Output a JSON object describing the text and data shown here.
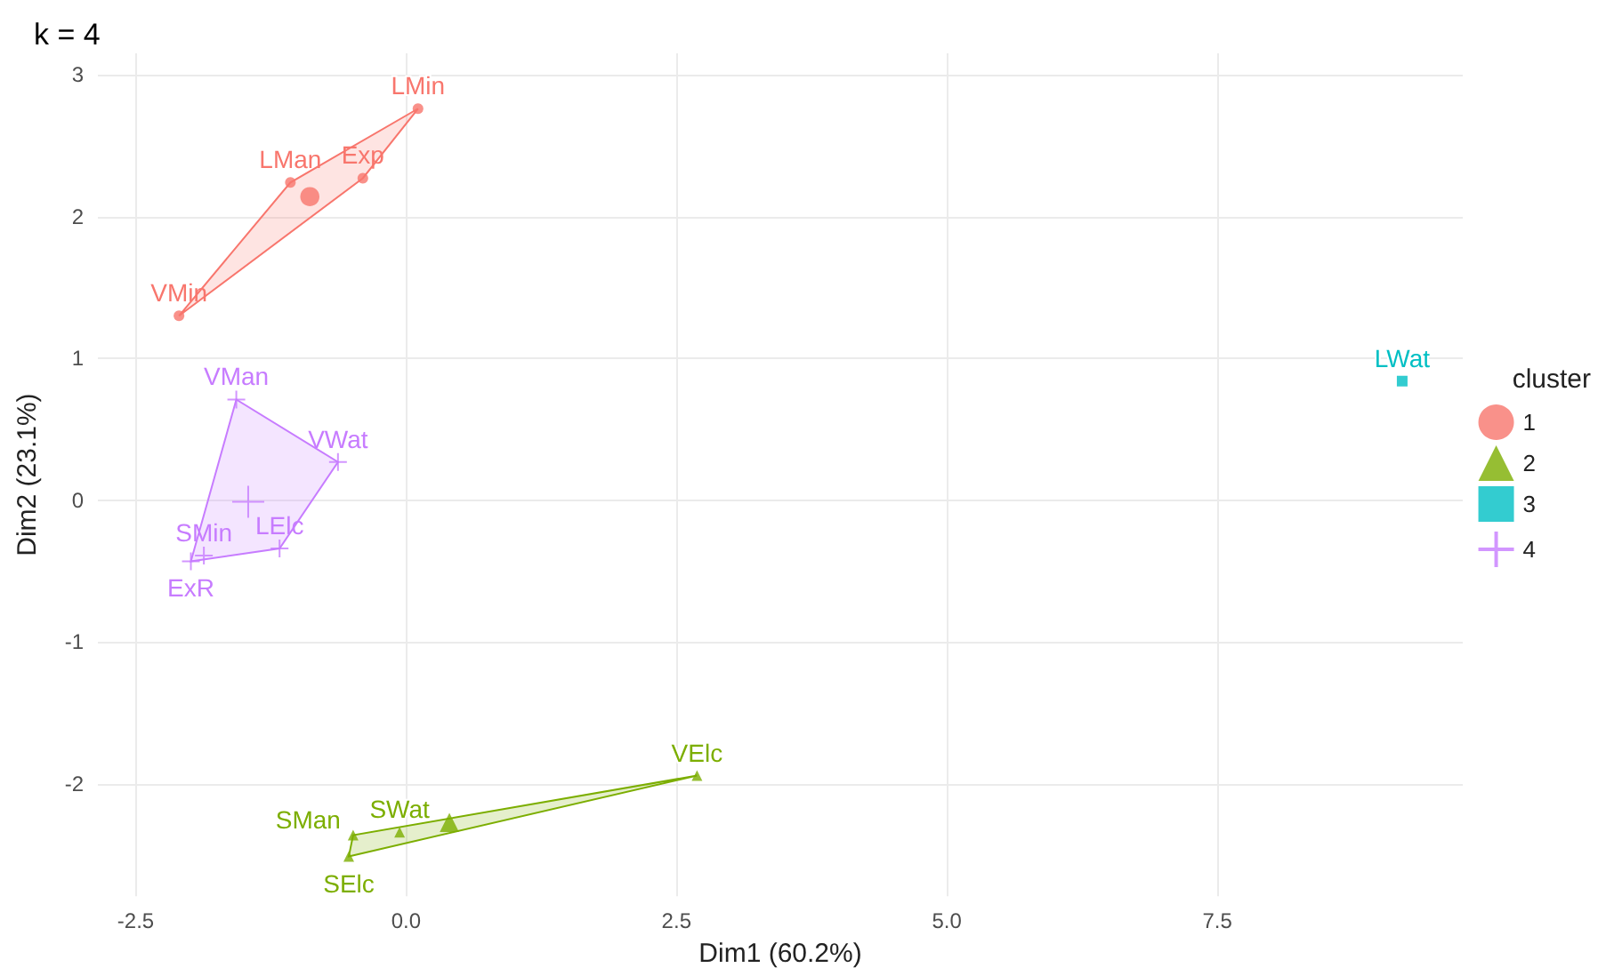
{
  "chart_data": {
    "type": "scatter",
    "title": "k = 4",
    "xlabel": "Dim1 (60.2%)",
    "ylabel": "Dim2 (23.1%)",
    "legend_title": "cluster",
    "legend": "right",
    "grid": true,
    "xlim": [
      -2.85,
      9.77
    ],
    "ylim": [
      -2.79,
      3.15
    ],
    "xticks": [
      {
        "value": -2.5,
        "label": "-2.5"
      },
      {
        "value": 0,
        "label": "0.0"
      },
      {
        "value": 2.5,
        "label": "2.5"
      },
      {
        "value": 5,
        "label": "5.0"
      },
      {
        "value": 7.5,
        "label": "7.5"
      }
    ],
    "yticks": [
      -2,
      -1,
      0,
      1,
      2,
      3
    ],
    "series": [
      {
        "name": "1",
        "color": "#f8766d",
        "marker": "circle",
        "x": [
          0.11,
          -1.07,
          -0.4,
          -2.1
        ],
        "values": [
          2.76,
          2.24,
          2.27,
          1.3
        ]
      },
      {
        "name": "2",
        "color": "#7cae00",
        "marker": "triangle",
        "x": [
          2.69,
          -0.06,
          -0.49,
          -0.53
        ],
        "values": [
          -1.94,
          -2.34,
          -2.36,
          -2.51
        ]
      },
      {
        "name": "3",
        "color": "#00bfc4",
        "marker": "square",
        "x": [
          9.21
        ],
        "values": [
          0.84
        ]
      },
      {
        "name": "4",
        "color": "#c77cff",
        "marker": "cross",
        "x": [
          -1.57,
          -0.63,
          -1.17,
          -1.87,
          -1.99
        ],
        "values": [
          0.71,
          0.27,
          -0.34,
          -0.39,
          -0.43
        ]
      },
      {
        "color": "#f8766d",
        "marker": "circle",
        "x": [
          -0.89
        ],
        "values": [
          2.14
        ]
      },
      {
        "color": "#7cae00",
        "marker": "triangle",
        "x": [
          0.4
        ],
        "values": [
          -2.27
        ]
      },
      {
        "color": "#c77cff",
        "marker": "cross",
        "x": [
          -1.46
        ],
        "values": [
          -0.01
        ]
      }
    ],
    "annotations": [
      {
        "text": "LMin",
        "x": 0.11,
        "y": 2.76
      },
      {
        "text": "LMan",
        "x": -1.07,
        "y": 2.24
      },
      {
        "text": "Exp",
        "x": -0.4,
        "y": 2.27
      },
      {
        "text": "VMin",
        "x": -2.1,
        "y": 1.3
      },
      {
        "text": "VElc",
        "x": 2.69,
        "y": -1.94
      },
      {
        "text": "SWat",
        "x": -0.06,
        "y": -2.34
      },
      {
        "text": "SMan",
        "x": -0.49,
        "y": -2.36
      },
      {
        "text": "SElc",
        "x": -0.53,
        "y": -2.51
      },
      {
        "text": "LWat",
        "x": 9.21,
        "y": 0.84
      },
      {
        "text": "VMan",
        "x": -1.57,
        "y": 0.71
      },
      {
        "text": "VWat",
        "x": -0.63,
        "y": 0.27
      },
      {
        "text": "LElc",
        "x": -1.17,
        "y": -0.34
      },
      {
        "text": "SMin",
        "x": -1.87,
        "y": -0.39
      },
      {
        "text": "ExR",
        "x": -1.99,
        "y": -0.43
      }
    ]
  }
}
